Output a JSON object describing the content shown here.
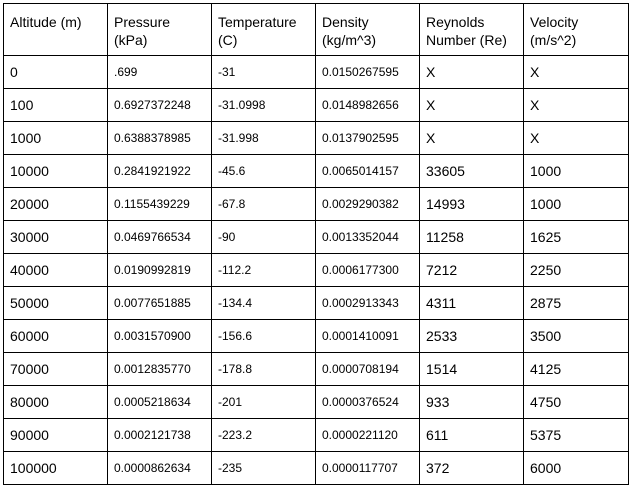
{
  "headers": [
    [
      "Altitude (m)"
    ],
    [
      "Pressure",
      "(kPa)"
    ],
    [
      "Temperature",
      "(C)"
    ],
    [
      "Density",
      "(kg/m^3)"
    ],
    [
      "Reynolds",
      "Number (Re)"
    ],
    [
      "Velocity",
      "(m/s^2)"
    ]
  ],
  "rows": [
    [
      "0",
      ".699",
      "-31",
      "0.0150267595",
      "X",
      "X"
    ],
    [
      "100",
      "0.6927372248",
      "-31.0998",
      "0.0148982656",
      "X",
      "X"
    ],
    [
      "1000",
      "0.6388378985",
      "-31.998",
      "0.0137902595",
      "X",
      "X"
    ],
    [
      "10000",
      "0.2841921922",
      "-45.6",
      "0.0065014157",
      "33605",
      "1000"
    ],
    [
      "20000",
      "0.1155439229",
      "-67.8",
      "0.0029290382",
      "14993",
      "1000"
    ],
    [
      "30000",
      "0.0469766534",
      "-90",
      "0.0013352044",
      "11258",
      "1625"
    ],
    [
      "40000",
      "0.0190992819",
      "-112.2",
      "0.0006177300",
      "7212",
      "2250"
    ],
    [
      "50000",
      "0.0077651885",
      "-134.4",
      "0.0002913343",
      "4311",
      "2875"
    ],
    [
      "60000",
      "0.0031570900",
      "-156.6",
      "0.0001410091",
      "2533",
      "3500"
    ],
    [
      "70000",
      "0.0012835770",
      "-178.8",
      "0.0000708194",
      "1514",
      "4125"
    ],
    [
      "80000",
      "0.0005218634",
      "-201",
      "0.0000376524",
      "933",
      "4750"
    ],
    [
      "90000",
      "0.0002121738",
      "-223.2",
      "0.0000221120",
      "611",
      "5375"
    ],
    [
      "100000",
      "0.0000862634",
      "-235",
      "0.0000117707",
      "372",
      "6000"
    ]
  ]
}
